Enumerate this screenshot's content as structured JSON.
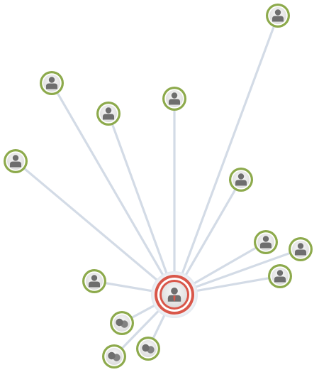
{
  "graph": {
    "center": {
      "kind": "person",
      "ring_color": "#d9574a",
      "icon": "person-icon"
    },
    "nodes": [
      {
        "id": "n1",
        "kind": "person",
        "icon": "person-icon"
      },
      {
        "id": "n2",
        "kind": "person",
        "icon": "person-icon"
      },
      {
        "id": "n3",
        "kind": "person",
        "icon": "person-icon"
      },
      {
        "id": "n4",
        "kind": "person",
        "icon": "person-icon"
      },
      {
        "id": "n5",
        "kind": "person",
        "icon": "person-icon"
      },
      {
        "id": "n6",
        "kind": "person",
        "icon": "person-icon"
      },
      {
        "id": "n7",
        "kind": "person",
        "icon": "person-icon"
      },
      {
        "id": "n8",
        "kind": "person",
        "icon": "person-icon"
      },
      {
        "id": "n9",
        "kind": "person",
        "icon": "person-icon"
      },
      {
        "id": "n10",
        "kind": "person",
        "icon": "person-icon"
      },
      {
        "id": "n11",
        "kind": "group",
        "icon": "group-icon"
      },
      {
        "id": "n12",
        "kind": "group",
        "icon": "group-icon"
      },
      {
        "id": "n13",
        "kind": "group",
        "icon": "group-icon"
      }
    ],
    "colors": {
      "node_ring": "#8daa4c",
      "center_ring": "#d9574a",
      "edge": "#d3dbe6",
      "icon_fill": "#6e6e6e",
      "icon_bg": "#e9e9e9"
    }
  }
}
